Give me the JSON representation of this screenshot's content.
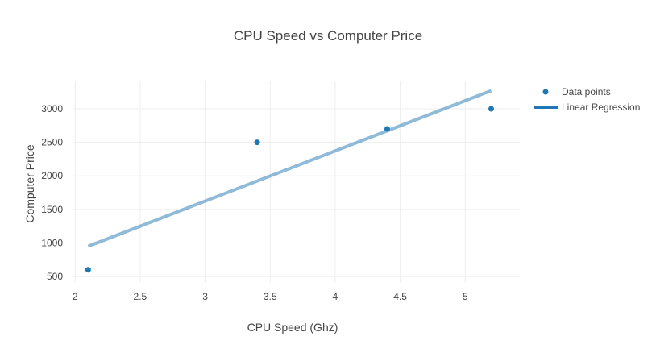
{
  "chart_data": {
    "type": "scatter",
    "title": "CPU Speed vs Computer Price",
    "xlabel": "CPU Speed (Ghz)",
    "ylabel": "Computer Price",
    "xlim": [
      1.98,
      5.42
    ],
    "ylim": [
      405,
      3420
    ],
    "x_ticks": [
      2,
      2.5,
      3,
      3.5,
      4,
      4.5,
      5
    ],
    "x_tick_labels": [
      "2",
      "2.5",
      "3",
      "3.5",
      "4",
      "4.5",
      "5"
    ],
    "y_ticks": [
      500,
      1000,
      1500,
      2000,
      2500,
      3000
    ],
    "y_tick_labels": [
      "500",
      "1000",
      "1500",
      "2000",
      "2500",
      "3000"
    ],
    "grid": true,
    "legend_position": "top-right",
    "series": [
      {
        "name": "Data points",
        "kind": "markers",
        "color": "#1f77b4",
        "x": [
          2.1,
          3.4,
          4.4,
          5.2
        ],
        "y": [
          600,
          2500,
          2700,
          3000
        ]
      },
      {
        "name": "Linear Regression",
        "kind": "line",
        "color": "#1f77b4",
        "opacity": 0.5,
        "x": [
          2.1,
          5.2
        ],
        "y": [
          950,
          3270
        ]
      }
    ]
  }
}
